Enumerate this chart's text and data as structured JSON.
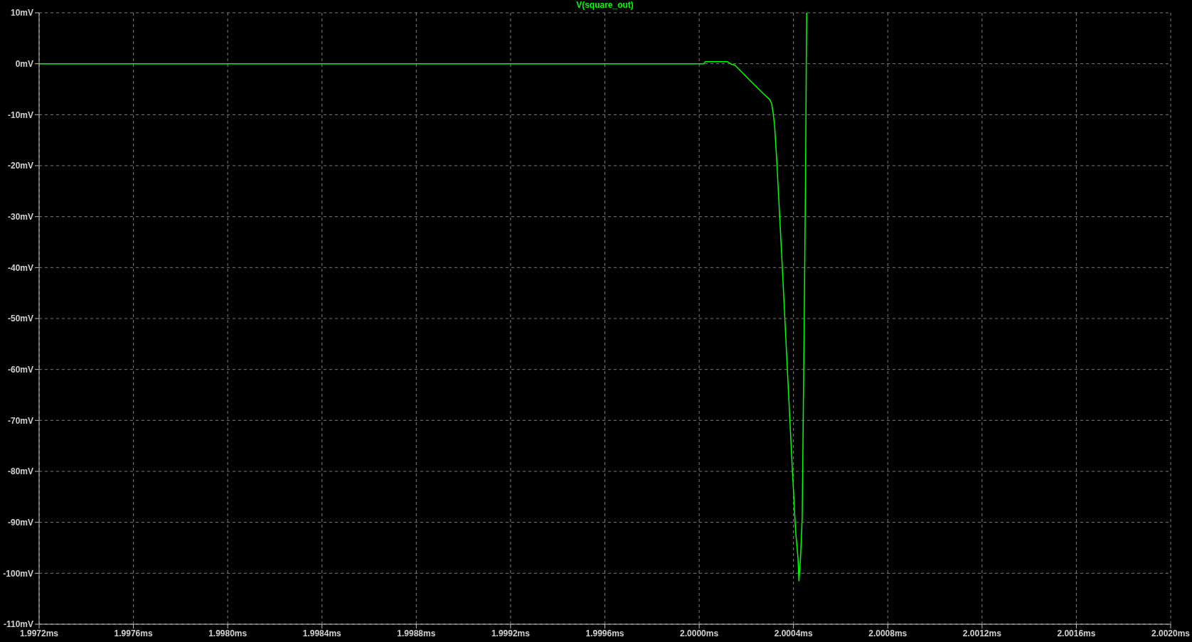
{
  "chart_data": {
    "type": "line",
    "title": "V(square_out)",
    "x": [
      1.9972,
      2.00002,
      2.000025,
      2.00012,
      2.000133,
      2.000152,
      2.000225,
      2.000271,
      2.000299,
      2.000308,
      2.000314,
      2.00032,
      2.00033,
      2.000352,
      2.000373,
      2.000394,
      2.000409,
      2.000419,
      2.000423,
      2.00043,
      2.000437,
      2.000444,
      2.000451,
      2.000454,
      2.000456
    ],
    "series": [
      {
        "color": "#00ff00",
        "values": [
          0,
          0,
          0.4,
          0.4,
          0,
          -0.3,
          -3.7,
          -5.8,
          -7.0,
          -7.9,
          -9.8,
          -12.1,
          -19.8,
          -39.4,
          -59.0,
          -78.6,
          -91.7,
          -96.9,
          -101.5,
          -96.9,
          -89.1,
          -57.7,
          -23.1,
          -1.5,
          10
        ]
      }
    ],
    "xlim": [
      1.9972,
      2.002
    ],
    "xticks": [
      {
        "value": 1.9972,
        "label": "1.9972ms"
      },
      {
        "value": 1.9976,
        "label": "1.9976ms"
      },
      {
        "value": 1.998,
        "label": "1.9980ms"
      },
      {
        "value": 1.9984,
        "label": "1.9984ms"
      },
      {
        "value": 1.9988,
        "label": "1.9988ms"
      },
      {
        "value": 1.9992,
        "label": "1.9992ms"
      },
      {
        "value": 1.9996,
        "label": "1.9996ms"
      },
      {
        "value": 2.0,
        "label": "2.0000ms"
      },
      {
        "value": 2.0004,
        "label": "2.0004ms"
      },
      {
        "value": 2.0008,
        "label": "2.0008ms"
      },
      {
        "value": 2.0012,
        "label": "2.0012ms"
      },
      {
        "value": 2.0016,
        "label": "2.0016ms"
      },
      {
        "value": 2.002,
        "label": "2.0020ms"
      }
    ],
    "ylim": [
      -110,
      10
    ],
    "yticks": [
      {
        "value": 10,
        "label": "10mV"
      },
      {
        "value": 0,
        "label": "0mV"
      },
      {
        "value": -10,
        "label": "-10mV"
      },
      {
        "value": -20,
        "label": "-20mV"
      },
      {
        "value": -30,
        "label": "-30mV"
      },
      {
        "value": -40,
        "label": "-40mV"
      },
      {
        "value": -50,
        "label": "-50mV"
      },
      {
        "value": -60,
        "label": "-60mV"
      },
      {
        "value": -70,
        "label": "-70mV"
      },
      {
        "value": -80,
        "label": "-80mV"
      },
      {
        "value": -90,
        "label": "-90mV"
      },
      {
        "value": -100,
        "label": "-100mV"
      },
      {
        "value": -110,
        "label": "-110mV"
      }
    ],
    "grid": true,
    "marker": "none",
    "line_style": "solid"
  }
}
